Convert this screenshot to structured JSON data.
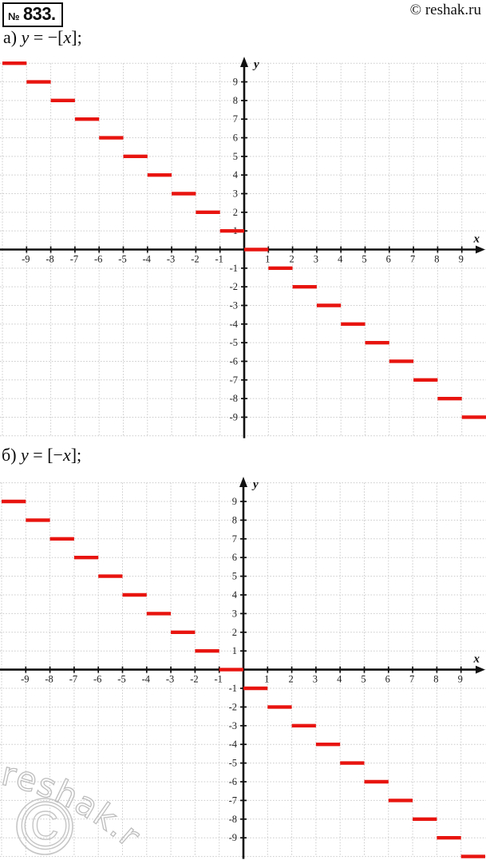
{
  "page": {
    "problem_number_prefix": "№",
    "problem_number": "833.",
    "site_credit": "© reshak.ru",
    "watermark": {
      "text": "reshak.ru",
      "symbol": "©"
    }
  },
  "sections": [
    {
      "parts": [
        "а) ",
        "y",
        " = −[",
        "x",
        "];"
      ]
    },
    {
      "parts": [
        "б) ",
        "y",
        " = [−",
        "x",
        "];"
      ]
    }
  ],
  "colors": {
    "accent_red": "#e8140f",
    "axis": "#111111",
    "grid": "#cccccc",
    "tick_text": "#222222",
    "watermark": "#c2c2c2"
  },
  "chart_data": [
    {
      "type": "step",
      "title": "y = −[x]",
      "xlabel": "x",
      "ylabel": "y",
      "xlim": [
        -10,
        10
      ],
      "ylim": [
        -10,
        10
      ],
      "grid": true,
      "legend": "none",
      "x_ticks": [
        -9,
        -8,
        -7,
        -6,
        -5,
        -4,
        -3,
        -2,
        -1,
        1,
        2,
        3,
        4,
        5,
        6,
        7,
        8,
        9
      ],
      "y_ticks": [
        -9,
        -8,
        -7,
        -6,
        -5,
        -4,
        -3,
        -2,
        -1,
        1,
        2,
        3,
        4,
        5,
        6,
        7,
        8,
        9
      ],
      "line_color": "#e8140f",
      "segments": [
        [
          -10,
          -9,
          10
        ],
        [
          -9,
          -8,
          9
        ],
        [
          -8,
          -7,
          8
        ],
        [
          -7,
          -6,
          7
        ],
        [
          -6,
          -5,
          6
        ],
        [
          -5,
          -4,
          5
        ],
        [
          -4,
          -3,
          4
        ],
        [
          -3,
          -2,
          3
        ],
        [
          -2,
          -1,
          2
        ],
        [
          -1,
          0,
          1
        ],
        [
          0,
          1,
          0
        ],
        [
          1,
          2,
          -1
        ],
        [
          2,
          3,
          -2
        ],
        [
          3,
          4,
          -3
        ],
        [
          4,
          5,
          -4
        ],
        [
          5,
          6,
          -5
        ],
        [
          6,
          7,
          -6
        ],
        [
          7,
          8,
          -7
        ],
        [
          8,
          9,
          -8
        ],
        [
          9,
          10,
          -9
        ]
      ]
    },
    {
      "type": "step",
      "title": "y = [−x]",
      "xlabel": "x",
      "ylabel": "y",
      "xlim": [
        -10,
        10
      ],
      "ylim": [
        -10,
        10
      ],
      "grid": true,
      "legend": "none",
      "x_ticks": [
        -9,
        -8,
        -7,
        -6,
        -5,
        -4,
        -3,
        -2,
        -1,
        1,
        2,
        3,
        4,
        5,
        6,
        7,
        8,
        9
      ],
      "y_ticks": [
        -9,
        -8,
        -7,
        -6,
        -5,
        -4,
        -3,
        -2,
        -1,
        1,
        2,
        3,
        4,
        5,
        6,
        7,
        8,
        9
      ],
      "line_color": "#e8140f",
      "segments": [
        [
          -10,
          -9,
          9
        ],
        [
          -9,
          -8,
          8
        ],
        [
          -8,
          -7,
          7
        ],
        [
          -7,
          -6,
          6
        ],
        [
          -6,
          -5,
          5
        ],
        [
          -5,
          -4,
          4
        ],
        [
          -4,
          -3,
          3
        ],
        [
          -3,
          -2,
          2
        ],
        [
          -2,
          -1,
          1
        ],
        [
          -1,
          0,
          0
        ],
        [
          0,
          1,
          -1
        ],
        [
          1,
          2,
          -2
        ],
        [
          2,
          3,
          -3
        ],
        [
          3,
          4,
          -4
        ],
        [
          4,
          5,
          -5
        ],
        [
          5,
          6,
          -6
        ],
        [
          6,
          7,
          -7
        ],
        [
          7,
          8,
          -8
        ],
        [
          8,
          9,
          -9
        ],
        [
          9,
          10,
          -10
        ]
      ]
    }
  ]
}
